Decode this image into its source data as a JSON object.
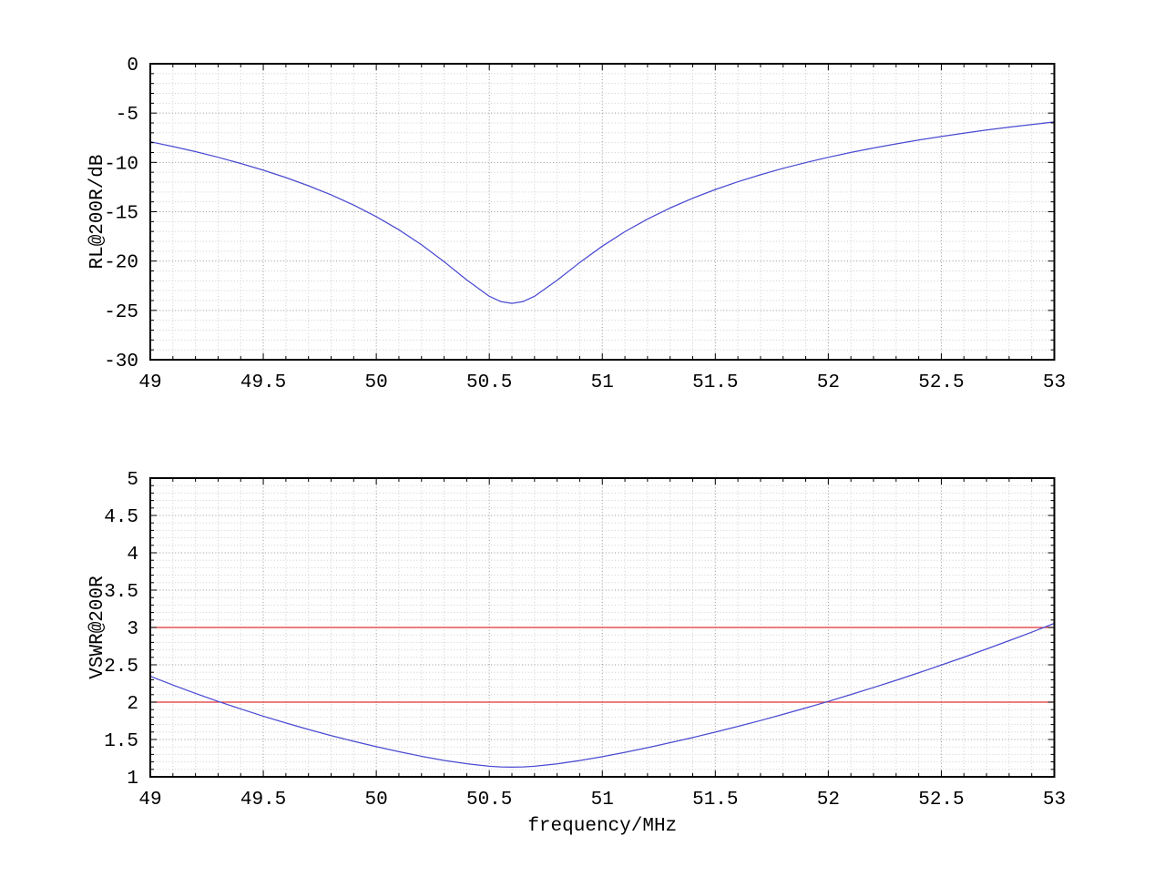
{
  "page": {
    "background": "#ffffff",
    "description": "Two stacked gnuplot-style line charts: return loss and VSWR of an antenna at 200 ohms versus frequency"
  },
  "colors": {
    "curve_blue": "#4a4ad2",
    "ref_line_red": "#e03030",
    "grid_major": "#949494",
    "grid_minor": "#cdcdcd",
    "axis_black": "#000000",
    "text_black": "#000000"
  },
  "chart_data": [
    {
      "type": "line",
      "title": "",
      "xlabel": "",
      "ylabel": "RL@200R/dB",
      "xlim": [
        49,
        53
      ],
      "ylim": [
        -30,
        0
      ],
      "grid": true,
      "legend": "none",
      "x_major_ticks": [
        49,
        49.5,
        50,
        50.5,
        51,
        51.5,
        52,
        52.5,
        53
      ],
      "x_tick_labels": [
        "49",
        "49.5",
        "50",
        "50.5",
        "51",
        "51.5",
        "52",
        "52.5",
        "53"
      ],
      "x_minor_step": 0.1,
      "y_major_ticks": [
        -30,
        -25,
        -20,
        -15,
        -10,
        -5,
        0
      ],
      "y_tick_labels": [
        "-30",
        "-25",
        "-20",
        "-15",
        "-10",
        "-5",
        "0"
      ],
      "y_minor_step": 1,
      "ref_lines": [],
      "series": [
        {
          "name": "RL@200R",
          "color": "#4a4ad2",
          "x": [
            49,
            49.1,
            49.2,
            49.3,
            49.4,
            49.5,
            49.6,
            49.7,
            49.8,
            49.9,
            50,
            50.1,
            50.2,
            50.3,
            50.4,
            50.5,
            50.55,
            50.6,
            50.65,
            50.7,
            50.8,
            50.9,
            51,
            51.1,
            51.2,
            51.3,
            51.4,
            51.5,
            51.6,
            51.7,
            51.8,
            51.9,
            52,
            52.1,
            52.2,
            52.3,
            52.4,
            52.5,
            52.6,
            52.7,
            52.8,
            52.9,
            53
          ],
          "y": [
            -7.91,
            -8.39,
            -8.91,
            -9.48,
            -10.11,
            -10.79,
            -11.54,
            -12.37,
            -13.29,
            -14.33,
            -15.5,
            -16.83,
            -18.35,
            -20.06,
            -21.91,
            -23.57,
            -24.1,
            -24.29,
            -24.1,
            -23.57,
            -21.95,
            -20.15,
            -18.49,
            -17.02,
            -15.74,
            -14.62,
            -13.63,
            -12.75,
            -11.96,
            -11.25,
            -10.6,
            -10.02,
            -9.48,
            -8.99,
            -8.54,
            -8.12,
            -7.73,
            -7.37,
            -7.04,
            -6.72,
            -6.43,
            -6.16,
            -5.9
          ]
        }
      ]
    },
    {
      "type": "line",
      "title": "",
      "xlabel": "frequency/MHz",
      "ylabel": "VSWR@200R",
      "xlim": [
        49,
        53
      ],
      "ylim": [
        1,
        5
      ],
      "grid": true,
      "legend": "none",
      "x_major_ticks": [
        49,
        49.5,
        50,
        50.5,
        51,
        51.5,
        52,
        52.5,
        53
      ],
      "x_tick_labels": [
        "49",
        "49.5",
        "50",
        "50.5",
        "51",
        "51.5",
        "52",
        "52.5",
        "53"
      ],
      "x_minor_step": 0.1,
      "y_major_ticks": [
        1,
        1.5,
        2,
        2.5,
        3,
        3.5,
        4,
        4.5,
        5
      ],
      "y_tick_labels": [
        "1",
        "1.5",
        "2",
        "2.5",
        "3",
        "3.5",
        "4",
        "4.5",
        "5"
      ],
      "y_minor_step": 0.1,
      "ref_lines": [
        {
          "y": 2,
          "color": "#e03030",
          "name": "vswr-2-limit"
        },
        {
          "y": 3,
          "color": "#e03030",
          "name": "vswr-3-limit"
        }
      ],
      "series": [
        {
          "name": "VSWR@200R",
          "color": "#4a4ad2",
          "x": [
            49,
            49.1,
            49.2,
            49.3,
            49.4,
            49.5,
            49.6,
            49.7,
            49.8,
            49.9,
            50,
            50.1,
            50.2,
            50.3,
            50.4,
            50.5,
            50.55,
            50.6,
            50.65,
            50.7,
            50.8,
            50.9,
            51,
            51.1,
            51.2,
            51.3,
            51.4,
            51.5,
            51.6,
            51.7,
            51.8,
            51.9,
            52,
            52.1,
            52.2,
            52.3,
            52.4,
            52.5,
            52.6,
            52.7,
            52.8,
            52.9,
            53
          ],
          "y": [
            2.347,
            2.229,
            2.117,
            2.01,
            1.909,
            1.812,
            1.721,
            1.634,
            1.552,
            1.476,
            1.404,
            1.337,
            1.275,
            1.22,
            1.175,
            1.142,
            1.133,
            1.13,
            1.133,
            1.142,
            1.174,
            1.218,
            1.27,
            1.328,
            1.39,
            1.457,
            1.526,
            1.599,
            1.675,
            1.754,
            1.837,
            1.922,
            2.01,
            2.102,
            2.196,
            2.293,
            2.393,
            2.497,
            2.602,
            2.712,
            2.823,
            2.937,
            3.055
          ]
        }
      ]
    }
  ]
}
